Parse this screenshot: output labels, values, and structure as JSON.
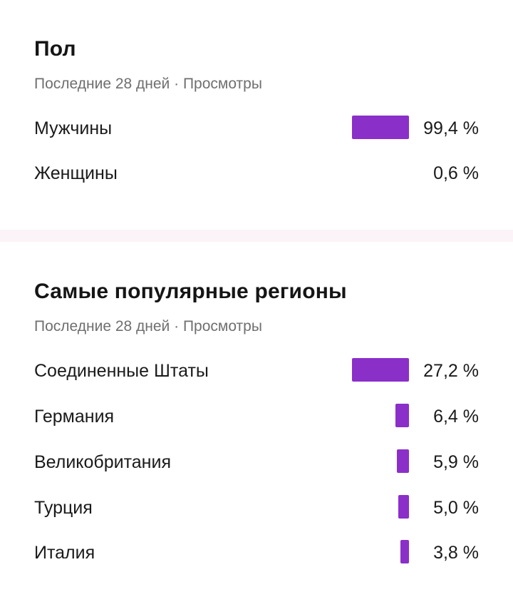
{
  "accent_color": "#8b2fc9",
  "gender": {
    "title": "Пол",
    "subtitle": "Последние 28 дней · Просмотры",
    "rows": [
      {
        "label": "Мужчины",
        "percent": "99,4 %",
        "value": 99.4
      },
      {
        "label": "Женщины",
        "percent": "0,6 %",
        "value": 0.6
      }
    ]
  },
  "regions": {
    "title": "Самые популярные регионы",
    "subtitle": "Последние 28 дней · Просмотры",
    "rows": [
      {
        "label": "Соединенные Штаты",
        "percent": "27,2 %",
        "value": 27.2
      },
      {
        "label": "Германия",
        "percent": "6,4 %",
        "value": 6.4
      },
      {
        "label": "Великобритания",
        "percent": "5,9 %",
        "value": 5.9
      },
      {
        "label": "Турция",
        "percent": "5,0 %",
        "value": 5.0
      },
      {
        "label": "Италия",
        "percent": "3,8 %",
        "value": 3.8
      }
    ]
  }
}
